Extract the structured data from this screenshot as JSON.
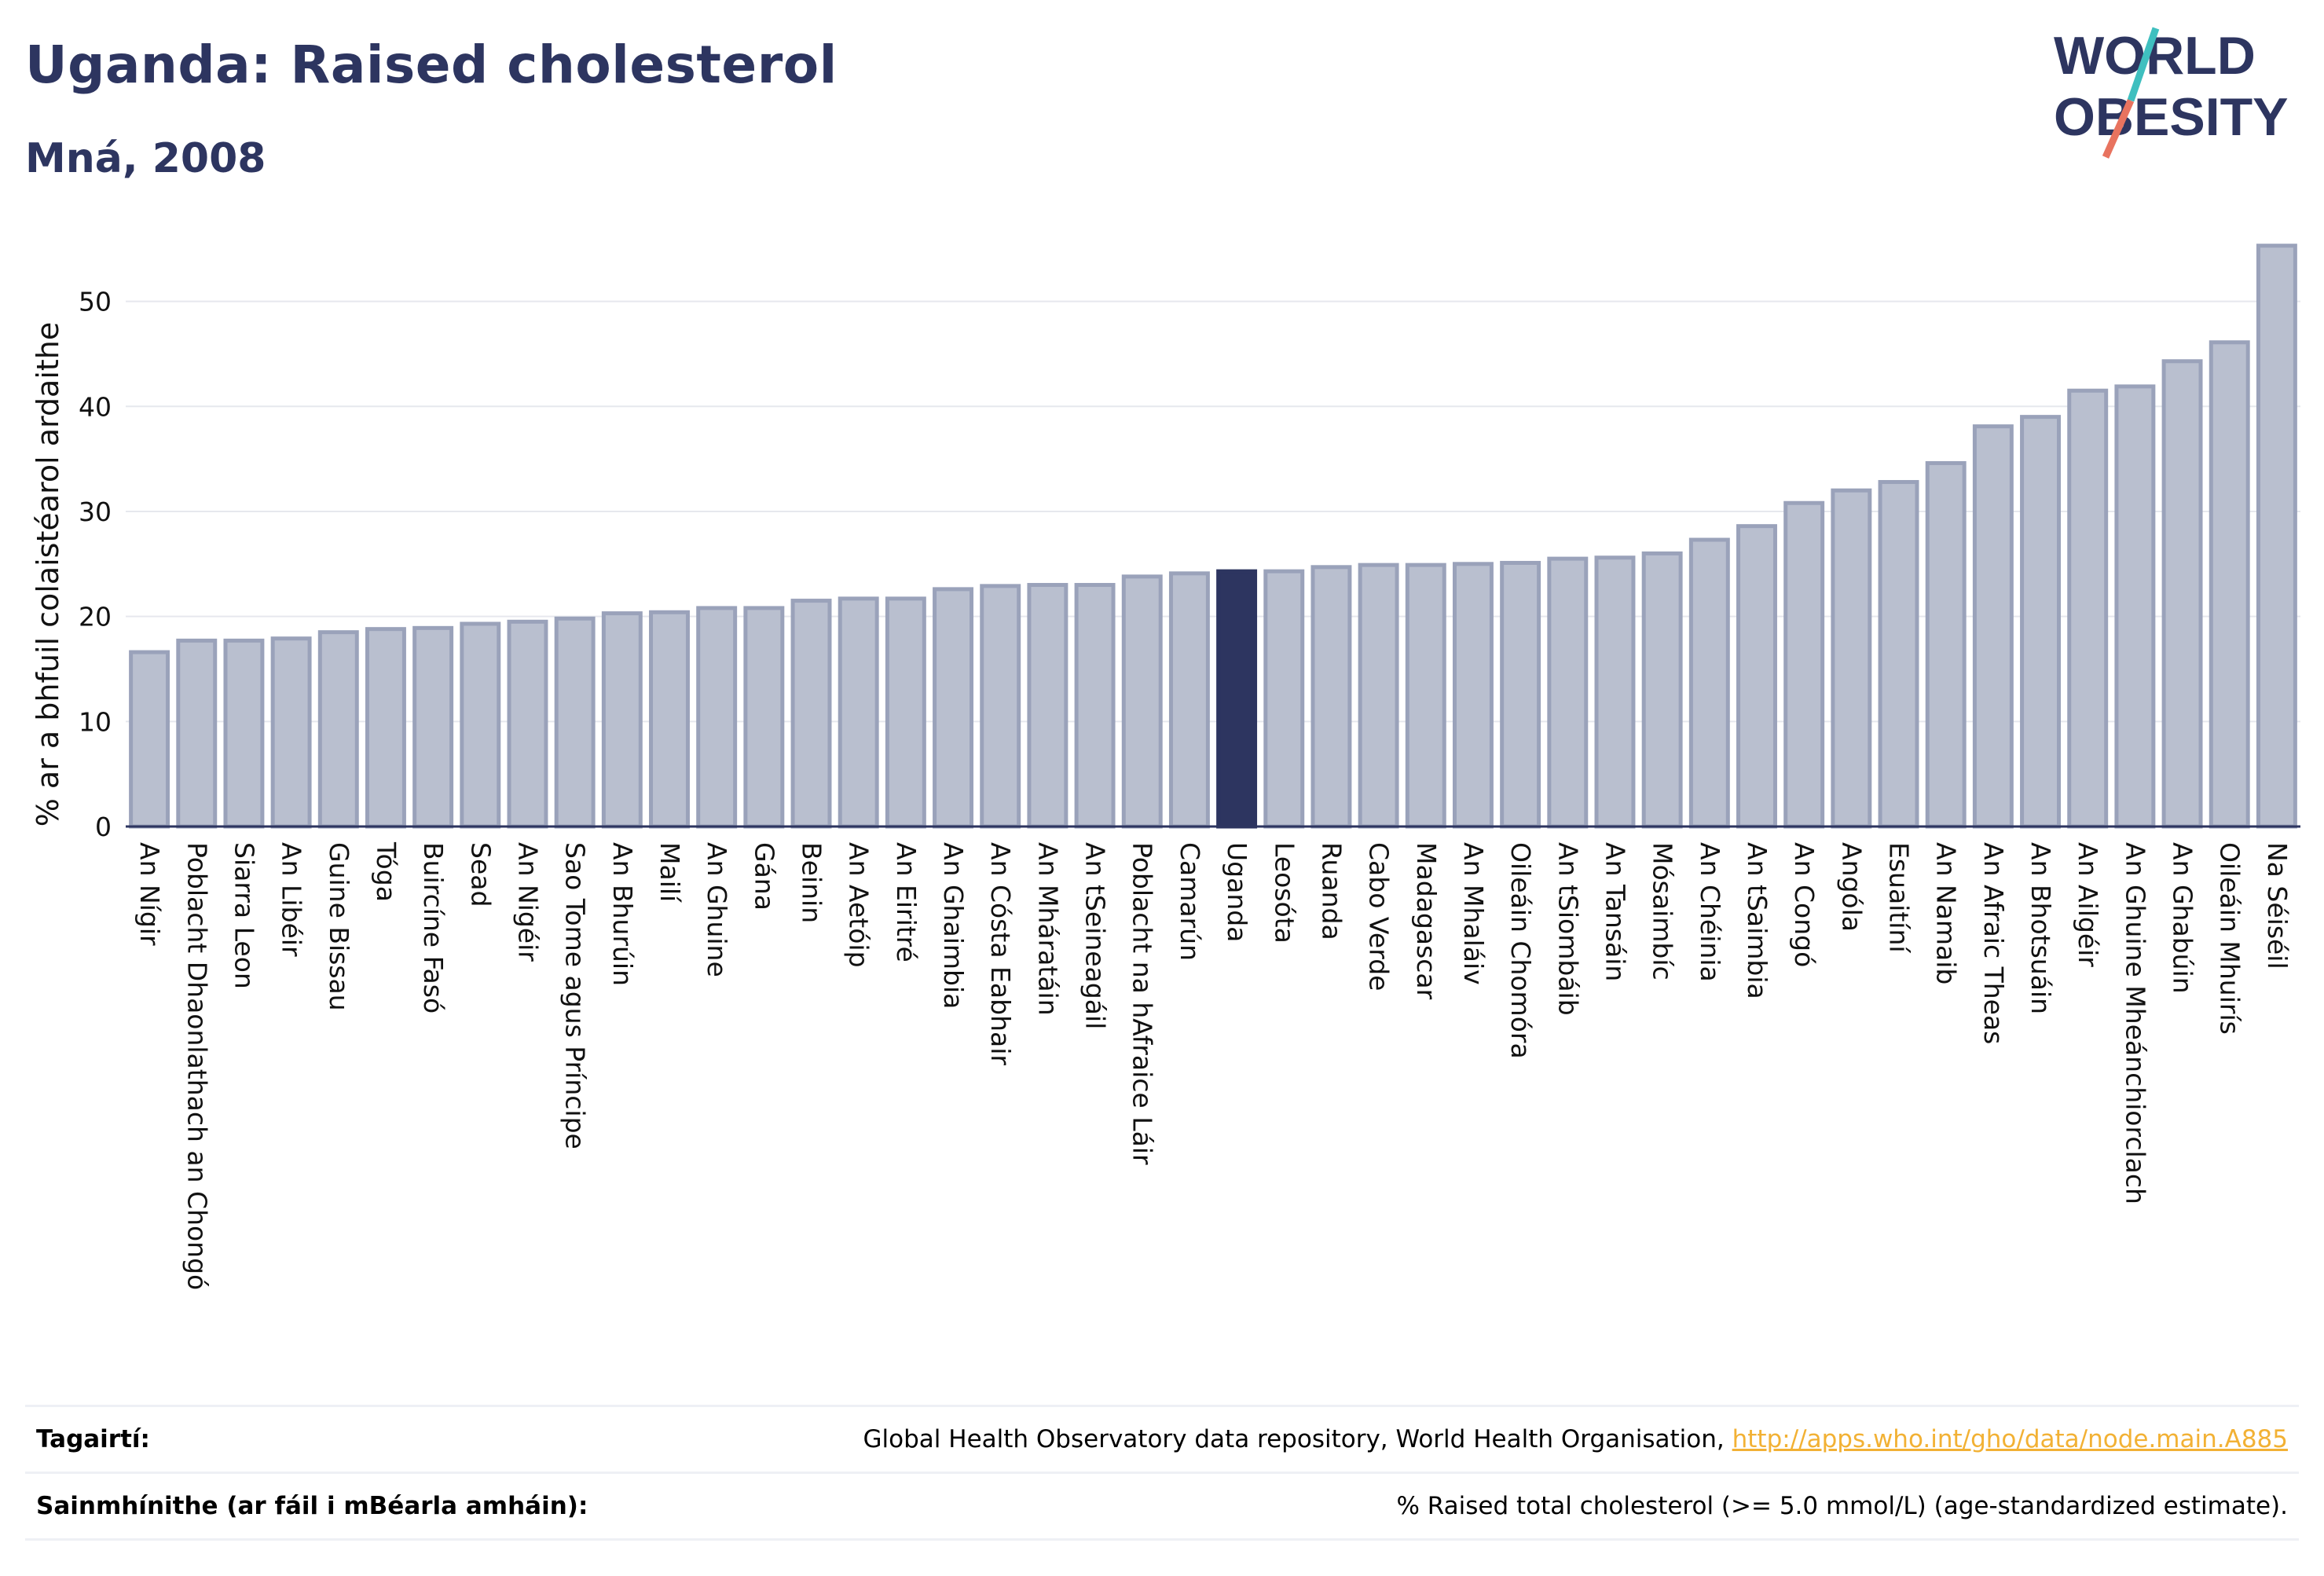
{
  "title": "Uganda: Raised cholesterol",
  "subtitle": "Mná, 2008",
  "logo": {
    "line1": "WORLD",
    "line2": "OBESITY",
    "text_color": "#2d3560",
    "accent_teal": "#3fbfbf",
    "accent_red": "#e8735f"
  },
  "colors": {
    "bar": "#b9bfcf",
    "bar_stroke": "#9aa2ba",
    "highlight": "#2d3560",
    "axis": "#2d3560",
    "grid": "#e6e8ee"
  },
  "chart_data": {
    "type": "bar",
    "ylabel": "% ar a bhfuil colaistéarol ardaithe",
    "xlabel": "",
    "ylim": [
      0,
      57
    ],
    "yticks": [
      0,
      10,
      20,
      30,
      40,
      50
    ],
    "grid": true,
    "highlight": "Uganda",
    "categories": [
      "An Nígir",
      "Poblacht Dhaonlathach an Chongó",
      "Siarra Leon",
      "An Libéir",
      "Guine Bissau",
      "Tóga",
      "Buircíne Fasó",
      "Sead",
      "An Nigéir",
      "Sao Tome agus Príncipe",
      "An Bhurúin",
      "Mailí",
      "An Ghuine",
      "Gána",
      "Beinin",
      "An Aetóip",
      "An Eiritré",
      "An Ghaimbia",
      "An Cósta Eabhair",
      "An Mháratáin",
      "An tSeineagáil",
      "Poblacht na hAfraice Láir",
      "Camarún",
      "Uganda",
      "Leosóta",
      "Ruanda",
      "Cabo Verde",
      "Madagascar",
      "An Mhaláiv",
      "Oileáin Chomóra",
      "An tSiombáib",
      "An Tansáin",
      "Mósaimbíc",
      "An Chéinia",
      "An tSaimbia",
      "An Congó",
      "Angóla",
      "Esuaitíní",
      "An Namaib",
      "An Afraic Theas",
      "An Bhotsuáin",
      "An Ailgéir",
      "An Ghuine Mheánchiorclach",
      "An Ghabúin",
      "Oileáin Mhuirís",
      "Na Séiséil"
    ],
    "values": [
      16.6,
      17.7,
      17.7,
      17.9,
      18.5,
      18.8,
      18.9,
      19.3,
      19.5,
      19.8,
      20.3,
      20.4,
      20.8,
      20.8,
      21.5,
      21.7,
      21.7,
      22.6,
      22.9,
      23.0,
      23.0,
      23.8,
      24.1,
      24.3,
      24.3,
      24.7,
      24.9,
      24.9,
      25.0,
      25.1,
      25.5,
      25.6,
      26.0,
      27.3,
      28.6,
      30.8,
      32.0,
      32.8,
      34.6,
      38.1,
      39.0,
      41.5,
      41.9,
      44.3,
      46.1,
      55.3
    ]
  },
  "footer": {
    "ref_label": "Tagairtí:",
    "ref_text": "Global Health Observatory data repository, World Health Organisation, ",
    "ref_link": "http://apps.who.int/gho/data/node.main.A885",
    "def_label": "Sainmhínithe (ar fáil i mBéarla amháin):",
    "def_text": "% Raised total cholesterol (>= 5.0 mmol/L) (age-standardized estimate)."
  }
}
